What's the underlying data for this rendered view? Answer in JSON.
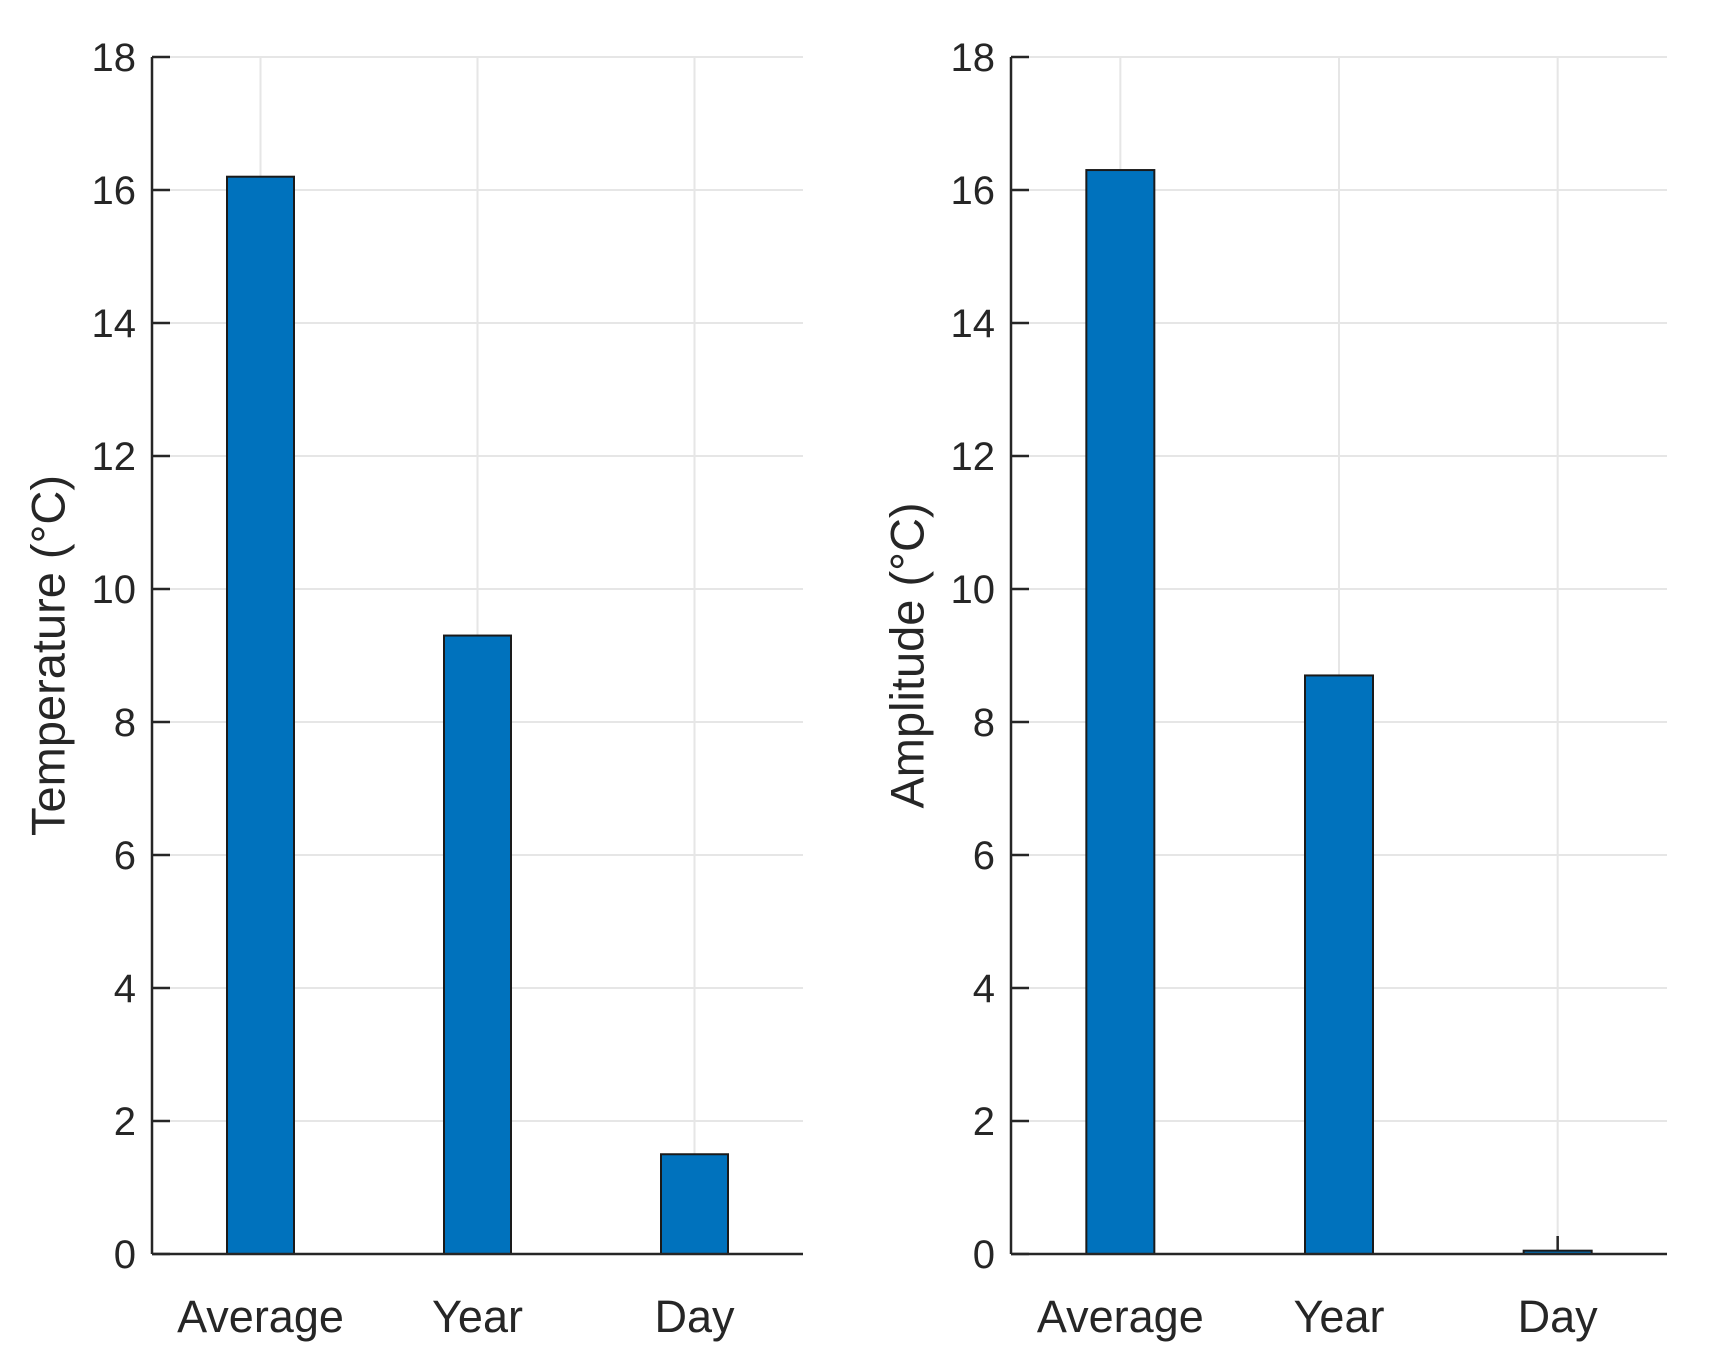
{
  "figure": {
    "background": "#ffffff",
    "num_subplots": 2
  },
  "chart_data": [
    {
      "type": "bar",
      "title": "",
      "categories": [
        "Average",
        "Year",
        "Day"
      ],
      "values": [
        16.2,
        9.3,
        1.5
      ],
      "xlabel": "",
      "ylabel": "Temperature (°C)",
      "ylim": [
        0,
        18
      ],
      "yticks": [
        0,
        2,
        4,
        6,
        8,
        10,
        12,
        14,
        16,
        18
      ],
      "grid": true,
      "legend": "none",
      "bar_color": "#0072BD",
      "bar_edge_color": "#1a1a1a",
      "axis_color": "#262626",
      "grid_color": "#e6e6e6"
    },
    {
      "type": "bar",
      "title": "",
      "categories": [
        "Average",
        "Year",
        "Day"
      ],
      "values": [
        16.3,
        8.7,
        0.05
      ],
      "xlabel": "",
      "ylabel": "Amplitude (°C)",
      "ylim": [
        0,
        18
      ],
      "yticks": [
        0,
        2,
        4,
        6,
        8,
        10,
        12,
        14,
        16,
        18
      ],
      "grid": true,
      "legend": "none",
      "bar_color": "#0072BD",
      "bar_edge_color": "#1a1a1a",
      "axis_color": "#262626",
      "grid_color": "#e6e6e6"
    }
  ]
}
